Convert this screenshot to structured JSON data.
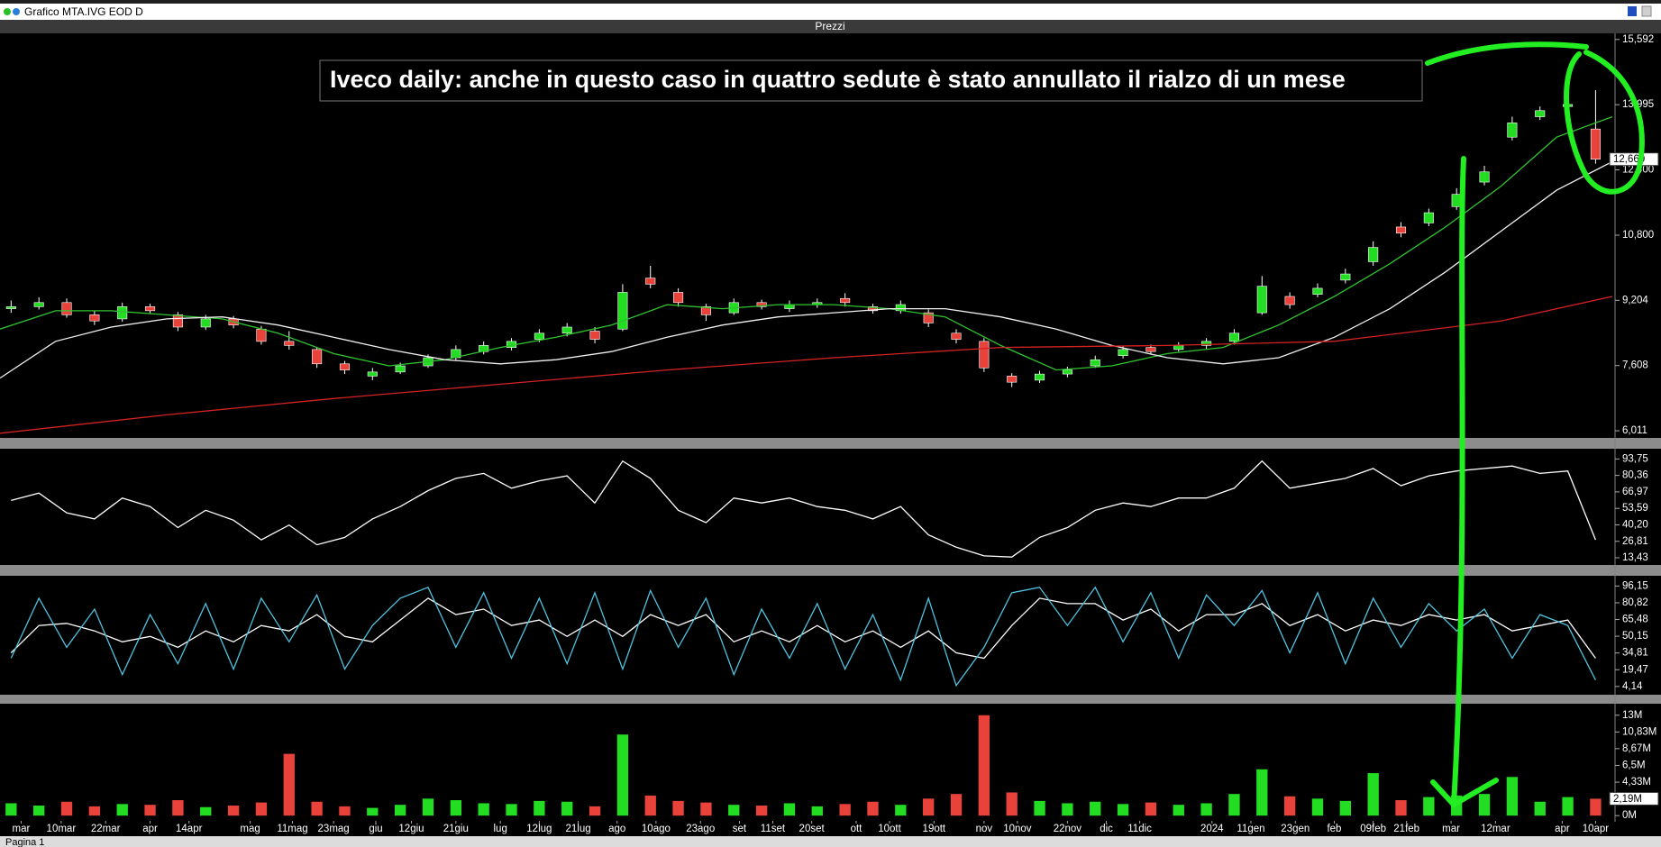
{
  "window": {
    "title": "Grafico MTA.IVG EOD D",
    "tab": "Pagina 1"
  },
  "chart_data": [
    {
      "type": "candlestick",
      "title": "Prezzi",
      "annotation": "Iveco daily: anche in questo caso in quattro sedute è stato annullato il rialzo di un mese",
      "x": [
        2,
        7,
        12,
        17,
        22,
        27,
        32,
        37,
        42,
        47,
        52,
        57,
        62,
        67,
        72,
        77,
        82,
        87,
        92,
        97,
        102,
        107,
        112,
        117,
        122,
        127,
        132,
        137,
        142,
        147,
        152,
        157,
        162,
        167,
        172,
        177,
        182,
        187,
        192,
        197,
        202,
        207,
        212,
        217,
        222,
        227,
        232,
        237,
        242,
        247,
        252,
        257,
        262,
        267,
        272,
        277,
        282,
        287
      ],
      "open": [
        9.0,
        9.05,
        9.15,
        8.85,
        8.75,
        9.05,
        8.85,
        8.55,
        8.75,
        8.5,
        8.2,
        8.0,
        7.65,
        7.35,
        7.45,
        7.6,
        7.8,
        7.95,
        8.05,
        8.25,
        8.4,
        8.45,
        8.5,
        9.75,
        9.4,
        9.05,
        8.9,
        9.15,
        9.0,
        9.1,
        9.25,
        9.05,
        8.95,
        8.9,
        8.4,
        8.2,
        7.35,
        7.25,
        7.4,
        7.6,
        7.85,
        8.05,
        8.0,
        8.1,
        8.2,
        8.9,
        9.3,
        9.35,
        9.7,
        10.15,
        11.0,
        11.1,
        11.5,
        12.1,
        13.2,
        13.7,
        13.95,
        13.4
      ],
      "high": [
        9.2,
        9.28,
        9.25,
        8.95,
        9.15,
        9.12,
        8.92,
        8.85,
        8.82,
        8.58,
        8.45,
        8.05,
        7.72,
        7.55,
        7.68,
        7.88,
        8.1,
        8.2,
        8.28,
        8.5,
        8.65,
        8.55,
        9.6,
        10.05,
        9.5,
        9.12,
        9.25,
        9.22,
        9.2,
        9.25,
        9.38,
        9.12,
        9.2,
        8.98,
        8.5,
        8.28,
        7.42,
        7.48,
        7.58,
        7.85,
        8.08,
        8.12,
        8.18,
        8.28,
        8.5,
        9.8,
        9.4,
        9.62,
        9.98,
        10.65,
        11.12,
        11.45,
        11.95,
        12.5,
        13.7,
        13.95,
        14.1,
        14.35
      ],
      "low": [
        8.9,
        8.98,
        8.78,
        8.6,
        8.68,
        8.88,
        8.45,
        8.48,
        8.52,
        8.12,
        8.0,
        7.55,
        7.4,
        7.25,
        7.4,
        7.55,
        7.72,
        7.88,
        7.98,
        8.18,
        8.32,
        8.15,
        8.45,
        9.5,
        9.05,
        8.7,
        8.85,
        8.98,
        8.92,
        9.02,
        9.05,
        8.88,
        8.88,
        8.55,
        8.15,
        7.45,
        7.08,
        7.18,
        7.32,
        7.55,
        7.78,
        7.88,
        7.95,
        8.02,
        8.12,
        8.85,
        9.0,
        9.28,
        9.62,
        10.05,
        10.75,
        11.02,
        11.42,
        12.02,
        13.12,
        13.62,
        13.85,
        12.55
      ],
      "close": [
        9.05,
        9.15,
        8.85,
        8.7,
        9.05,
        8.95,
        8.55,
        8.75,
        8.6,
        8.2,
        8.1,
        7.65,
        7.5,
        7.45,
        7.6,
        7.8,
        8.0,
        8.1,
        8.2,
        8.4,
        8.55,
        8.25,
        9.4,
        9.6,
        9.15,
        8.85,
        9.15,
        9.05,
        9.1,
        9.15,
        9.15,
        8.95,
        9.1,
        8.65,
        8.25,
        7.55,
        7.2,
        7.4,
        7.5,
        7.75,
        8.0,
        7.95,
        8.1,
        8.2,
        8.4,
        9.55,
        9.1,
        9.5,
        9.85,
        10.5,
        10.85,
        11.35,
        11.8,
        12.35,
        13.55,
        13.85,
        14.0,
        12.66
      ],
      "up_color": "#22dd22",
      "down_color": "#e8423a",
      "wick_color": "#ffffff",
      "series": [
        {
          "color": "#2fc42f",
          "x": [
            0,
            10,
            20,
            30,
            40,
            50,
            60,
            70,
            80,
            90,
            100,
            110,
            120,
            130,
            140,
            150,
            160,
            170,
            180,
            190,
            200,
            210,
            220,
            230,
            240,
            250,
            260,
            270,
            280,
            290
          ],
          "values": [
            8.5,
            8.95,
            8.95,
            8.85,
            8.75,
            8.4,
            7.9,
            7.6,
            7.75,
            8.05,
            8.3,
            8.6,
            9.1,
            9.0,
            9.1,
            9.1,
            9.0,
            8.8,
            8.1,
            7.5,
            7.6,
            7.9,
            8.05,
            8.6,
            9.3,
            10.1,
            11.0,
            12.0,
            13.2,
            13.7
          ]
        },
        {
          "color": "#f0f0f0",
          "x": [
            0,
            10,
            20,
            30,
            40,
            50,
            60,
            70,
            80,
            90,
            100,
            110,
            120,
            130,
            140,
            150,
            160,
            170,
            180,
            190,
            200,
            210,
            220,
            230,
            240,
            250,
            260,
            270,
            280,
            290
          ],
          "values": [
            7.3,
            8.2,
            8.55,
            8.75,
            8.8,
            8.6,
            8.3,
            8.0,
            7.75,
            7.65,
            7.75,
            7.95,
            8.3,
            8.6,
            8.8,
            8.9,
            9.0,
            9.0,
            8.8,
            8.5,
            8.1,
            7.8,
            7.65,
            7.8,
            8.3,
            9.0,
            9.9,
            10.9,
            11.9,
            12.6
          ]
        },
        {
          "color": "#d42222",
          "x": [
            0,
            30,
            60,
            90,
            120,
            150,
            180,
            210,
            240,
            270,
            290
          ],
          "values": [
            5.95,
            6.4,
            6.8,
            7.15,
            7.5,
            7.8,
            8.05,
            8.1,
            8.2,
            8.7,
            9.3
          ]
        }
      ],
      "last_value": {
        "value": 12.66,
        "label": "12,660"
      },
      "xlim": [
        0,
        290.5
      ],
      "ylim": [
        5.88,
        15.72
      ],
      "yticks": [
        {
          "value": 15.592,
          "label": "15,592"
        },
        {
          "value": 13.995,
          "label": "13,995"
        },
        {
          "value": 12.4,
          "label": "12,400"
        },
        {
          "value": 10.8,
          "label": "10,800"
        },
        {
          "value": 9.204,
          "label": "9,204"
        },
        {
          "value": 7.608,
          "label": "7,608"
        },
        {
          "value": 6.011,
          "label": "6,011"
        }
      ]
    },
    {
      "type": "line",
      "x": [
        2,
        7,
        12,
        17,
        22,
        27,
        32,
        37,
        42,
        47,
        52,
        57,
        62,
        67,
        72,
        77,
        82,
        87,
        92,
        97,
        102,
        107,
        112,
        117,
        122,
        127,
        132,
        137,
        142,
        147,
        152,
        157,
        162,
        167,
        172,
        177,
        182,
        187,
        192,
        197,
        202,
        207,
        212,
        217,
        222,
        227,
        232,
        237,
        242,
        247,
        252,
        257,
        262,
        267,
        272,
        277,
        282,
        287
      ],
      "series": [
        {
          "color": "#ffffff",
          "values": [
            60,
            66,
            50,
            45,
            62,
            55,
            38,
            52,
            44,
            28,
            40,
            24,
            30,
            45,
            55,
            68,
            78,
            82,
            70,
            76,
            80,
            58,
            92,
            78,
            52,
            42,
            62,
            58,
            62,
            55,
            52,
            45,
            55,
            32,
            22,
            15,
            14,
            30,
            38,
            52,
            58,
            55,
            62,
            62,
            70,
            92,
            70,
            74,
            78,
            86,
            72,
            80,
            84,
            86,
            88,
            82,
            84,
            28
          ]
        }
      ],
      "xlim": [
        0,
        290.5
      ],
      "ylim": [
        8.3,
        100.6
      ],
      "yticks": [
        {
          "value": 93.75,
          "label": "93,75"
        },
        {
          "value": 80.36,
          "label": "80,36"
        },
        {
          "value": 66.97,
          "label": "66,97"
        },
        {
          "value": 53.59,
          "label": "53,59"
        },
        {
          "value": 40.2,
          "label": "40,20"
        },
        {
          "value": 26.81,
          "label": "26,81"
        },
        {
          "value": 13.43,
          "label": "13,43"
        }
      ]
    },
    {
      "type": "line",
      "x": [
        2,
        7,
        12,
        17,
        22,
        27,
        32,
        37,
        42,
        47,
        52,
        57,
        62,
        67,
        72,
        77,
        82,
        87,
        92,
        97,
        102,
        107,
        112,
        117,
        122,
        127,
        132,
        137,
        142,
        147,
        152,
        157,
        162,
        167,
        172,
        177,
        182,
        187,
        192,
        197,
        202,
        207,
        212,
        217,
        222,
        227,
        232,
        237,
        242,
        247,
        252,
        257,
        262,
        267,
        272,
        277,
        282,
        287
      ],
      "series": [
        {
          "color": "#ffffff",
          "values": [
            35,
            60,
            62,
            55,
            45,
            50,
            40,
            55,
            45,
            60,
            55,
            70,
            50,
            45,
            65,
            85,
            70,
            75,
            60,
            65,
            50,
            65,
            50,
            70,
            60,
            70,
            45,
            55,
            45,
            60,
            45,
            55,
            40,
            55,
            35,
            30,
            60,
            85,
            80,
            80,
            65,
            75,
            55,
            70,
            70,
            80,
            60,
            70,
            55,
            65,
            60,
            70,
            65,
            70,
            55,
            60,
            65,
            30
          ]
        },
        {
          "color": "#4fc3e0",
          "values": [
            30,
            85,
            40,
            75,
            15,
            70,
            25,
            80,
            20,
            85,
            45,
            88,
            20,
            60,
            85,
            95,
            40,
            90,
            30,
            85,
            25,
            90,
            20,
            92,
            40,
            85,
            15,
            75,
            30,
            80,
            20,
            70,
            10,
            85,
            5,
            40,
            90,
            95,
            60,
            95,
            45,
            90,
            30,
            88,
            60,
            92,
            35,
            90,
            25,
            85,
            40,
            80,
            55,
            75,
            30,
            70,
            60,
            10
          ]
        }
      ],
      "xlim": [
        0,
        290.5
      ],
      "ylim": [
        -2.6,
        103.9
      ],
      "yticks": [
        {
          "value": 96.15,
          "label": "96,15"
        },
        {
          "value": 80.82,
          "label": "80,82"
        },
        {
          "value": 65.48,
          "label": "65,48"
        },
        {
          "value": 50.15,
          "label": "50,15"
        },
        {
          "value": 34.81,
          "label": "34,81"
        },
        {
          "value": 19.47,
          "label": "19,47"
        },
        {
          "value": 4.14,
          "label": "4,14"
        }
      ]
    },
    {
      "type": "bar",
      "x": [
        2,
        7,
        12,
        17,
        22,
        27,
        32,
        37,
        42,
        47,
        52,
        57,
        62,
        67,
        72,
        77,
        82,
        87,
        92,
        97,
        102,
        107,
        112,
        117,
        122,
        127,
        132,
        137,
        142,
        147,
        152,
        157,
        162,
        167,
        172,
        177,
        182,
        187,
        192,
        197,
        202,
        207,
        212,
        217,
        222,
        227,
        232,
        237,
        242,
        247,
        252,
        257,
        262,
        267,
        272,
        277,
        282,
        287
      ],
      "values": [
        1.6,
        1.3,
        1.8,
        1.2,
        1.5,
        1.4,
        2.0,
        1.1,
        1.3,
        1.7,
        8.0,
        1.8,
        1.2,
        1.0,
        1.4,
        2.2,
        2.0,
        1.6,
        1.5,
        1.9,
        1.8,
        1.2,
        10.5,
        2.6,
        1.9,
        1.7,
        1.4,
        1.3,
        1.6,
        1.2,
        1.5,
        1.8,
        1.4,
        2.2,
        2.8,
        13.0,
        3.0,
        1.9,
        1.6,
        1.8,
        1.5,
        1.7,
        1.4,
        1.6,
        2.8,
        6.0,
        2.5,
        2.2,
        1.9,
        5.5,
        2.0,
        2.4,
        2.6,
        2.8,
        5.0,
        1.8,
        2.4,
        2.19
      ],
      "up_color": "#22dd22",
      "down_color": "#e8423a",
      "last_value": {
        "value": 2.19,
        "label": "2,19M"
      },
      "xlim": [
        0,
        290.5
      ],
      "ylim": [
        -0.68,
        14.37
      ],
      "yticks": [
        {
          "value": 13,
          "label": "13M"
        },
        {
          "value": 10.83,
          "label": "10,83M"
        },
        {
          "value": 8.67,
          "label": "8,67M"
        },
        {
          "value": 6.5,
          "label": "6,5M"
        },
        {
          "value": 4.33,
          "label": "4,33M"
        },
        {
          "value": 0,
          "label": "0M"
        }
      ],
      "xticks": [
        {
          "value": 3.8,
          "label": "mar"
        },
        {
          "value": 11,
          "label": "10mar"
        },
        {
          "value": 19,
          "label": "22mar"
        },
        {
          "value": 27,
          "label": "apr"
        },
        {
          "value": 34,
          "label": "14apr"
        },
        {
          "value": 45,
          "label": "mag"
        },
        {
          "value": 52.6,
          "label": "11mag"
        },
        {
          "value": 60,
          "label": "23mag"
        },
        {
          "value": 67.6,
          "label": "giu"
        },
        {
          "value": 74,
          "label": "12giu"
        },
        {
          "value": 82,
          "label": "21giu"
        },
        {
          "value": 90,
          "label": "lug"
        },
        {
          "value": 97,
          "label": "12lug"
        },
        {
          "value": 104,
          "label": "21lug"
        },
        {
          "value": 111,
          "label": "ago"
        },
        {
          "value": 118,
          "label": "10ago"
        },
        {
          "value": 126,
          "label": "23ago"
        },
        {
          "value": 133,
          "label": "set"
        },
        {
          "value": 139,
          "label": "11set"
        },
        {
          "value": 146,
          "label": "20set"
        },
        {
          "value": 154,
          "label": "ott"
        },
        {
          "value": 160,
          "label": "10ott"
        },
        {
          "value": 168,
          "label": "19ott"
        },
        {
          "value": 177,
          "label": "nov"
        },
        {
          "value": 183,
          "label": "10nov"
        },
        {
          "value": 192,
          "label": "22nov"
        },
        {
          "value": 199,
          "label": "dic"
        },
        {
          "value": 205,
          "label": "11dic"
        },
        {
          "value": 218,
          "label": "2024"
        },
        {
          "value": 225,
          "label": "11gen"
        },
        {
          "value": 233,
          "label": "23gen"
        },
        {
          "value": 240,
          "label": "feb"
        },
        {
          "value": 247,
          "label": "09feb"
        },
        {
          "value": 253,
          "label": "21feb"
        },
        {
          "value": 261,
          "label": "mar"
        },
        {
          "value": 269,
          "label": "12mar"
        },
        {
          "value": 281,
          "label": "apr"
        },
        {
          "value": 287,
          "label": "10apr"
        }
      ]
    }
  ]
}
